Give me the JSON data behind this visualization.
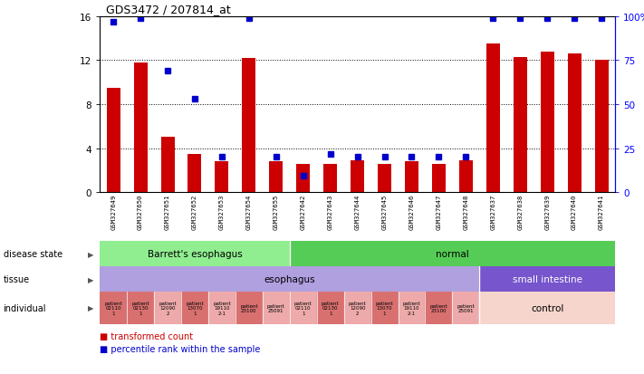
{
  "title": "GDS3472 / 207814_at",
  "samples": [
    "GSM327649",
    "GSM327650",
    "GSM327651",
    "GSM327652",
    "GSM327653",
    "GSM327654",
    "GSM327655",
    "GSM327642",
    "GSM327643",
    "GSM327644",
    "GSM327645",
    "GSM327646",
    "GSM327647",
    "GSM327648",
    "GSM327637",
    "GSM327638",
    "GSM327639",
    "GSM327640",
    "GSM327641"
  ],
  "red_values": [
    9.5,
    11.8,
    5.0,
    3.5,
    2.8,
    12.2,
    2.8,
    2.6,
    2.6,
    2.9,
    2.6,
    2.8,
    2.6,
    2.9,
    13.5,
    12.3,
    12.8,
    12.6,
    12.0
  ],
  "blue_values": [
    15.5,
    15.8,
    11.0,
    8.5,
    3.2,
    15.8,
    3.2,
    1.5,
    3.5,
    3.2,
    3.2,
    3.2,
    3.2,
    3.2,
    15.8,
    15.8,
    15.8,
    15.8,
    15.8
  ],
  "ylim": [
    0,
    16
  ],
  "yticks_left": [
    0,
    4,
    8,
    12,
    16
  ],
  "yticks_right": [
    0,
    25,
    50,
    75,
    100
  ],
  "bar_color": "#cc0000",
  "dot_color": "#0000cc",
  "n_barrett": 7,
  "n_esoph": 14,
  "disease_color_barrett": "#90ee90",
  "disease_color_normal": "#55cc55",
  "tissue_color_esoph": "#b0a0e0",
  "tissue_color_small": "#7755cc",
  "indiv_colors": [
    "#d97070",
    "#d97070",
    "#eeaaaa",
    "#d97070",
    "#eeaaaa",
    "#d97070",
    "#eeaaaa",
    "#eeaaaa",
    "#d97070",
    "#eeaaaa",
    "#d97070",
    "#eeaaaa",
    "#d97070",
    "#eeaaaa"
  ],
  "control_color": "#f5d5cc",
  "title_fontsize": 9,
  "bar_fontsize": 5.5,
  "row_label_fontsize": 7,
  "annot_fontsize": 7.5,
  "indiv_fontsize": 4.0,
  "legend_fontsize": 7
}
